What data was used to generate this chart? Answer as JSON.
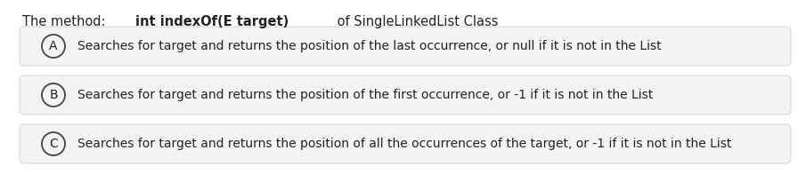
{
  "title_normal": "The method: ",
  "title_bold": "int indexOf(E target)",
  "title_normal2": " of SingleLinkedList Class",
  "options": [
    {
      "label": "A",
      "text": "Searches for target and returns the position of the last occurrence, or null if it is not in the List"
    },
    {
      "label": "B",
      "text": "Searches for target and returns the position of the first occurrence, or -1 if it is not in the List"
    },
    {
      "label": "C",
      "text": "Searches for target and returns the position of all the occurrences of the target, or -1 if it is not in the List"
    }
  ],
  "bg_color": "#ffffff",
  "box_color": "#f3f3f3",
  "box_edge_color": "#d8d8d8",
  "text_color": "#222222",
  "circle_edge_color": "#444444",
  "title_fontsize": 10.5,
  "option_fontsize": 10.0,
  "label_fontsize": 10.0
}
